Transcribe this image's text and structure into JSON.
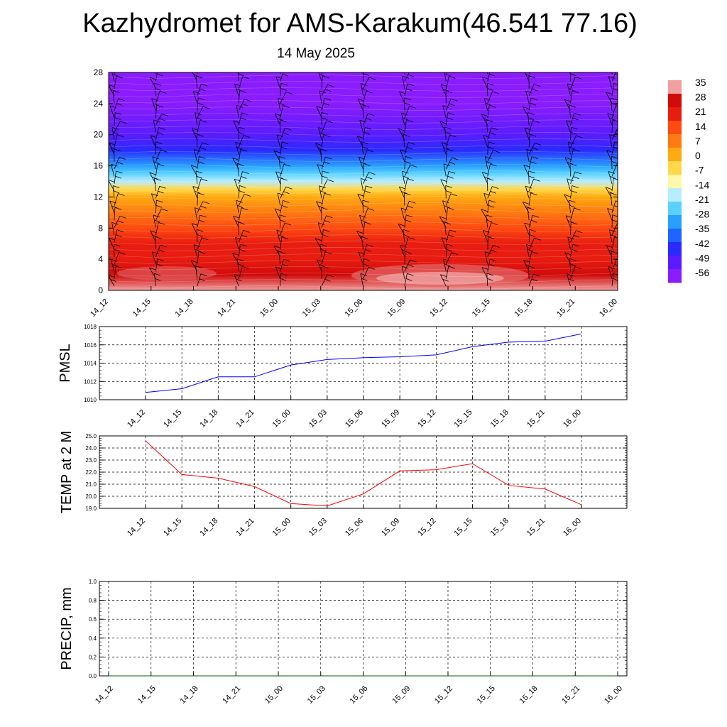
{
  "title": "Kazhydromet for AMS-Karakum(46.541 77.16)",
  "subtitle": "14 May 2025",
  "chart_data": [
    {
      "type": "heatmap",
      "name": "upper-air-temperature-cross-section",
      "x_tick_labels": [
        "14_12",
        "14_15",
        "14_18",
        "14_21",
        "15_00",
        "15_03",
        "15_06",
        "15_09",
        "15_12",
        "15_15",
        "15_18",
        "15_21",
        "16_00"
      ],
      "y_tick_labels": [
        "0",
        "4",
        "8",
        "12",
        "16",
        "20",
        "24",
        "28"
      ],
      "ylim": [
        0,
        28
      ],
      "colorbar_labels": [
        "35",
        "28",
        "21",
        "14",
        "7",
        "0",
        "-7",
        "-14",
        "-21",
        "-28",
        "-35",
        "-42",
        "-49",
        "-56"
      ],
      "colorbar_values": [
        35,
        28,
        21,
        14,
        7,
        0,
        -7,
        -14,
        -21,
        -28,
        -35,
        -42,
        -49,
        -56
      ],
      "colormap": [
        "#8a1cff",
        "#5a1cff",
        "#2a2aff",
        "#1e64ff",
        "#28a0ff",
        "#5ad2ff",
        "#b8ecff",
        "#fff8a8",
        "#ffd84a",
        "#ffaa10",
        "#ff7a10",
        "#ff4a10",
        "#e81c10",
        "#d10a0a",
        "#f0a0a0"
      ],
      "level_profile": [
        {
          "h": 0,
          "t": 32
        },
        {
          "h": 2,
          "t": 29
        },
        {
          "h": 4,
          "t": 24
        },
        {
          "h": 6,
          "t": 19
        },
        {
          "h": 8,
          "t": 13
        },
        {
          "h": 10,
          "t": 7
        },
        {
          "h": 12,
          "t": 1
        },
        {
          "h": 13,
          "t": -6
        },
        {
          "h": 14,
          "t": -16
        },
        {
          "h": 15,
          "t": -26
        },
        {
          "h": 16,
          "t": -36
        },
        {
          "h": 18,
          "t": -46
        },
        {
          "h": 20,
          "t": -52
        },
        {
          "h": 24,
          "t": -58
        },
        {
          "h": 28,
          "t": -63
        }
      ],
      "wind_barbs": "black"
    },
    {
      "type": "line",
      "name": "pmsl",
      "ylabel": "PMSL",
      "x": [
        "14_12",
        "14_15",
        "14_18",
        "14_21",
        "15_00",
        "15_03",
        "15_06",
        "15_09",
        "15_12",
        "15_15",
        "15_18",
        "15_21",
        "16_00"
      ],
      "y_tick_labels": [
        "1010",
        "1012",
        "1014",
        "1016",
        "1018"
      ],
      "ylim": [
        1010,
        1018
      ],
      "color": "#0000ff",
      "values": [
        1010.8,
        1011.2,
        1012.5,
        1012.5,
        1013.8,
        1014.4,
        1014.6,
        1014.7,
        1014.9,
        1015.8,
        1016.3,
        1016.4,
        1017.2
      ]
    },
    {
      "type": "line",
      "name": "temp-2m",
      "ylabel": "TEMP at 2 M",
      "x": [
        "14_12",
        "14_15",
        "14_18",
        "14_21",
        "15_00",
        "15_03",
        "15_06",
        "15_09",
        "15_12",
        "15_15",
        "15_18",
        "15_21",
        "16_00"
      ],
      "y_tick_labels": [
        "19.0",
        "20.0",
        "21.0",
        "22.0",
        "23.0",
        "24.0",
        "25.0"
      ],
      "ylim": [
        19.0,
        25.0
      ],
      "color": "#ff0000",
      "values": [
        24.6,
        21.8,
        21.5,
        20.8,
        19.4,
        19.2,
        20.2,
        22.1,
        22.2,
        22.7,
        20.9,
        20.6,
        19.3
      ]
    },
    {
      "type": "line",
      "name": "precip",
      "ylabel": "PRECIP, mm",
      "x": [
        "14_12",
        "14_15",
        "14_18",
        "14_21",
        "15_00",
        "15_03",
        "15_06",
        "15_09",
        "15_12",
        "15_15",
        "15_18",
        "15_21",
        "16_00"
      ],
      "y_tick_labels": [
        "0.0",
        "0.2",
        "0.4",
        "0.6",
        "0.8",
        "1.0"
      ],
      "ylim": [
        0.0,
        1.0
      ],
      "color": "#006400",
      "values": [
        0,
        0,
        0,
        0,
        0,
        0,
        0,
        0,
        0,
        0,
        0,
        0,
        0
      ]
    }
  ]
}
